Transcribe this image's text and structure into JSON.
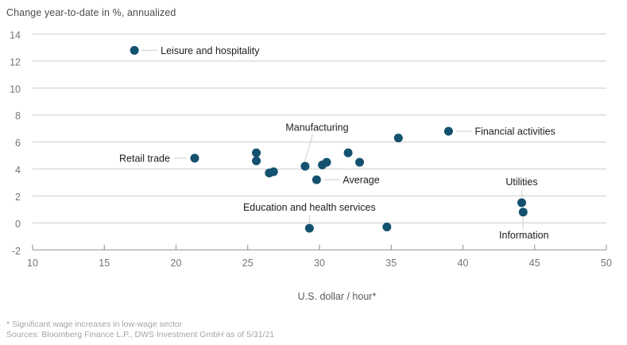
{
  "chart_data": {
    "type": "scatter",
    "title": "Change year-to-date in %, annualized",
    "xlabel": "U.S. dollar / hour*",
    "footnote": "* Significant wage increases in low-wage sector",
    "sources": "Sources: Bloomberg Finance L.P., DWS Investment GmbH as of 5/31/21",
    "xlim": [
      10,
      50
    ],
    "ylim": [
      -2,
      14
    ],
    "x_ticks": [
      10,
      15,
      20,
      25,
      30,
      35,
      40,
      45,
      50
    ],
    "y_ticks": [
      14,
      12,
      10,
      8,
      6,
      4,
      2,
      0,
      -2
    ],
    "grid": "horizontal",
    "legend": "none",
    "colors": {
      "dot": "#13516f",
      "gridline": "#cbcbcb",
      "axis": "#9e9e9e",
      "leader": "#d6d6d6",
      "label_text": "#1d1d1d",
      "tick_text": "#757575"
    },
    "points": [
      {
        "x": 17.1,
        "y": 12.8,
        "label": "Leisure and hospitality",
        "label_side": "right"
      },
      {
        "x": 21.3,
        "y": 4.8,
        "label": "Retail trade",
        "label_side": "left"
      },
      {
        "x": 25.6,
        "y": 5.2
      },
      {
        "x": 25.6,
        "y": 4.6
      },
      {
        "x": 26.5,
        "y": 3.7
      },
      {
        "x": 26.8,
        "y": 3.8
      },
      {
        "x": 29.0,
        "y": 4.2,
        "label": "Manufacturing",
        "label_side": "above-diagonal"
      },
      {
        "x": 29.8,
        "y": 3.2,
        "label": "Average",
        "label_side": "right"
      },
      {
        "x": 30.2,
        "y": 4.3
      },
      {
        "x": 30.5,
        "y": 4.5
      },
      {
        "x": 32.0,
        "y": 5.2
      },
      {
        "x": 32.8,
        "y": 4.5
      },
      {
        "x": 35.5,
        "y": 6.3
      },
      {
        "x": 39.0,
        "y": 6.8,
        "label": "Financial activities",
        "label_side": "right"
      },
      {
        "x": 29.3,
        "y": -0.4,
        "label": "Education and health services",
        "label_side": "above"
      },
      {
        "x": 34.7,
        "y": -0.3
      },
      {
        "x": 44.1,
        "y": 1.5,
        "label": "Utilities",
        "label_side": "above"
      },
      {
        "x": 44.2,
        "y": 0.8,
        "label": "Information",
        "label_side": "below"
      }
    ]
  }
}
